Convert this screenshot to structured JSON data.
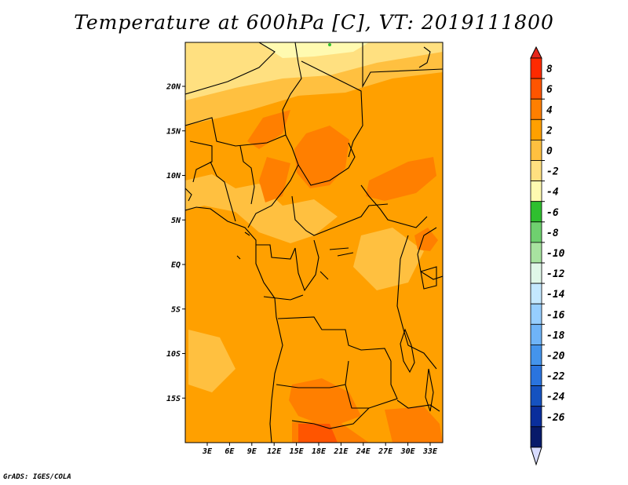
{
  "title": "Temperature at 600hPa [C], VT: 2019111800",
  "credit": "GrADS: IGES/COLA",
  "map": {
    "lon_range": [
      0,
      35
    ],
    "lat_range": [
      -20,
      25
    ],
    "lat_ticks": [
      "20N",
      "15N",
      "10N",
      "5N",
      "EQ",
      "5S",
      "10S",
      "15S"
    ],
    "lon_ticks": [
      "3E",
      "6E",
      "9E",
      "12E",
      "15E",
      "18E",
      "21E",
      "24E",
      "27E",
      "30E",
      "33E"
    ]
  },
  "colorbar": {
    "labels": [
      "8",
      "6",
      "4",
      "2",
      "0",
      "-2",
      "-4",
      "-6",
      "-8",
      "-10",
      "-12",
      "-14",
      "-16",
      "-18",
      "-20",
      "-22",
      "-24",
      "-26"
    ],
    "colors": [
      "#ff2a00",
      "#ff5500",
      "#ff7f00",
      "#ffa000",
      "#ffc040",
      "#ffe080",
      "#fffab0",
      "#2fbf2f",
      "#6fd06f",
      "#a8e3a0",
      "#e0f7e8",
      "#c4e8ff",
      "#96ceff",
      "#6fb4f8",
      "#4494ec",
      "#2a74de",
      "#1552c0",
      "#0a2e9c",
      "#081a6a"
    ],
    "arrow_top_color": "#e6261a",
    "arrow_bottom_color": "#d8dcff"
  }
}
